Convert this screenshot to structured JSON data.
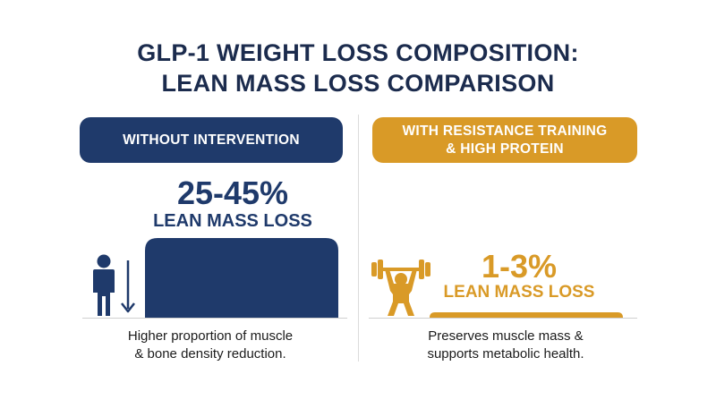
{
  "title_line1": "GLP-1 WEIGHT LOSS COMPOSITION:",
  "title_line2": "LEAN MASS LOSS COMPARISON",
  "chart_data": {
    "type": "bar",
    "categories": [
      "WITHOUT INTERVENTION",
      "WITH RESISTANCE TRAINING & HIGH PROTEIN"
    ],
    "values": [
      45,
      3
    ],
    "value_labels": [
      "25-45%",
      "1-3%"
    ],
    "value_sublabels": [
      "LEAN MASS LOSS",
      "LEAN MASS LOSS"
    ],
    "ranges": [
      [
        25,
        45
      ],
      [
        1,
        3
      ]
    ],
    "unit": "%",
    "colors": [
      "#1f3a6b",
      "#d99a27"
    ],
    "grid": false
  },
  "left": {
    "header_label": "WITHOUT INTERVENTION",
    "caption_line1": "Higher proportion of muscle",
    "caption_line2": "& bone density reduction."
  },
  "right": {
    "header_line1": "WITH RESISTANCE TRAINING",
    "header_line2": "& HIGH PROTEIN",
    "caption_line1": "Preserves muscle mass &",
    "caption_line2": "supports metabolic health."
  },
  "icons": {
    "left": "person-down-arrow-icon",
    "right": "weightlifter-icon"
  }
}
